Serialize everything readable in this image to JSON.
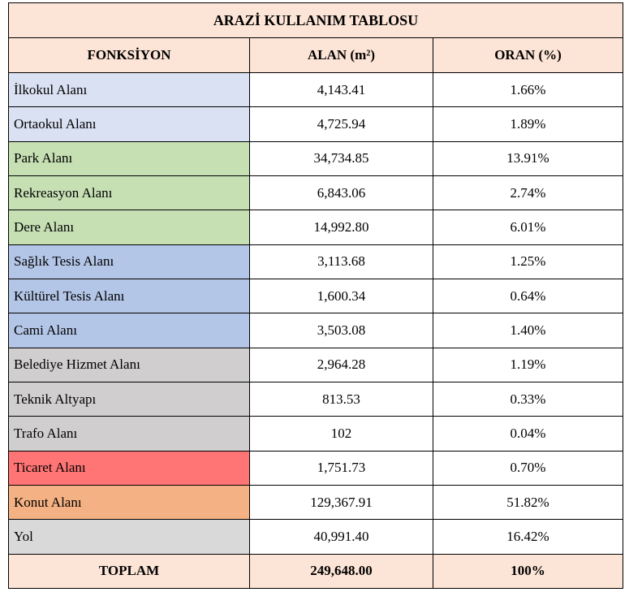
{
  "table": {
    "title": "ARAZİ KULLANIM TABLOSU",
    "headers": [
      "FONKSİYON",
      "ALAN (m²)",
      "ORAN (%)"
    ],
    "rows": [
      {
        "name": "İlkokul Alanı",
        "area": "4,143.41",
        "ratio": "1.66%",
        "color": "#d9e1f2"
      },
      {
        "name": "Ortaokul Alanı",
        "area": "4,725.94",
        "ratio": "1.89%",
        "color": "#d9e1f2"
      },
      {
        "name": "Park Alanı",
        "area": "34,734.85",
        "ratio": "13.91%",
        "color": "#c6e0b4"
      },
      {
        "name": "Rekreasyon Alanı",
        "area": "6,843.06",
        "ratio": "2.74%",
        "color": "#c6e0b4"
      },
      {
        "name": "Dere Alanı",
        "area": "14,992.80",
        "ratio": "6.01%",
        "color": "#c6e0b4"
      },
      {
        "name": "Sağlık Tesis Alanı",
        "area": "3,113.68",
        "ratio": "1.25%",
        "color": "#b4c6e7"
      },
      {
        "name": "Kültürel Tesis Alanı",
        "area": "1,600.34",
        "ratio": "0.64%",
        "color": "#b4c6e7"
      },
      {
        "name": "Cami Alanı",
        "area": "3,503.08",
        "ratio": "1.40%",
        "color": "#b4c6e7"
      },
      {
        "name": "Belediye Hizmet Alanı",
        "area": "2,964.28",
        "ratio": "1.19%",
        "color": "#d0cece"
      },
      {
        "name": "Teknik Altyapı",
        "area": "813.53",
        "ratio": "0.33%",
        "color": "#d0cece"
      },
      {
        "name": "Trafo Alanı",
        "area": "102",
        "ratio": "0.04%",
        "color": "#d0cece"
      },
      {
        "name": "Ticaret Alanı",
        "area": "1,751.73",
        "ratio": "0.70%",
        "color": "#ff7474"
      },
      {
        "name": "Konut Alanı",
        "area": "129,367.91",
        "ratio": "51.82%",
        "color": "#f4b183"
      },
      {
        "name": "Yol",
        "area": "40,991.40",
        "ratio": "16.42%",
        "color": "#d9d9d9"
      }
    ],
    "total": {
      "label": "TOPLAM",
      "area": "249,648.00",
      "ratio": "100%"
    }
  }
}
